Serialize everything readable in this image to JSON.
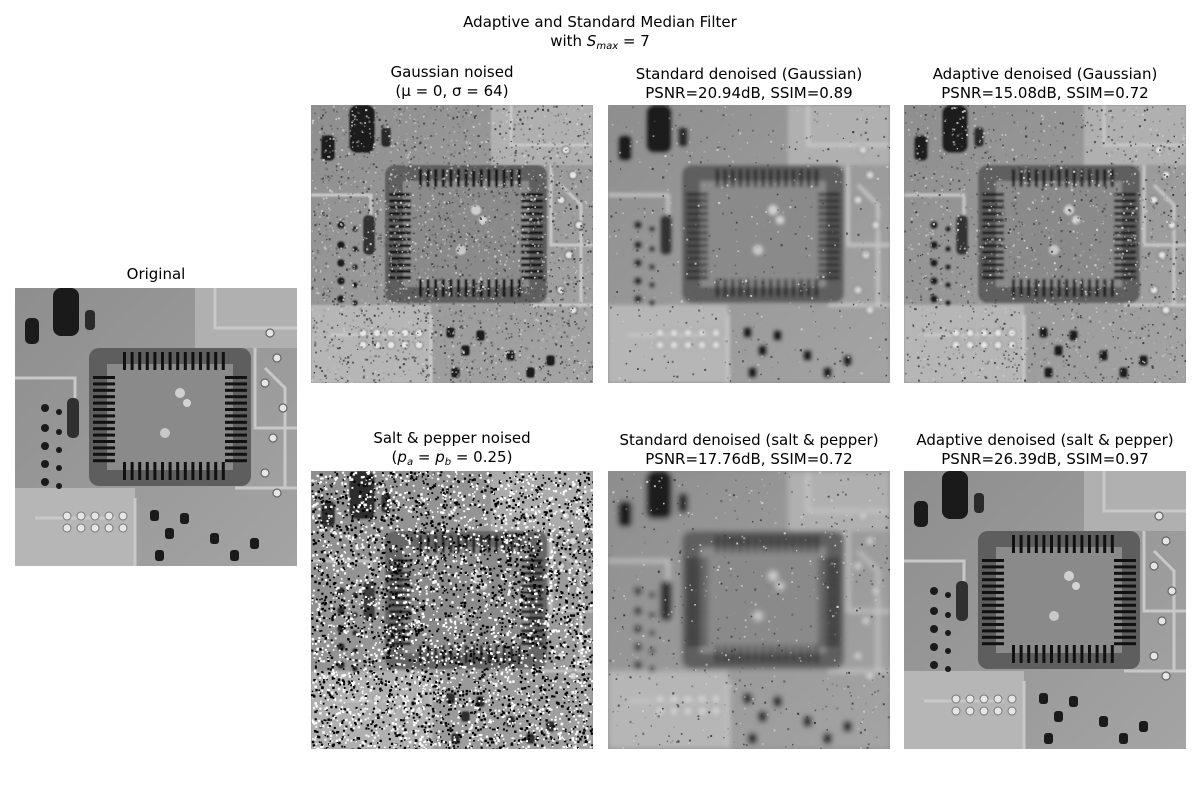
{
  "figure": {
    "title_line1": "Adaptive and Standard Median Filter",
    "title_line2_prefix": "with ",
    "title_var": "S",
    "title_sub": "max",
    "title_suffix": " = 7"
  },
  "panels": {
    "original": {
      "title": "Original",
      "image": "pcb-chip-xray-clean"
    },
    "gaussian_noised": {
      "title_line1": "Gaussian noised",
      "title_line2": "(μ = 0, σ = 64)",
      "image": "pcb-chip-gaussian-noise"
    },
    "standard_gaussian": {
      "title_line1": "Standard denoised (Gaussian)",
      "title_line2": "PSNR=20.94dB, SSIM=0.89",
      "psnr_db": 20.94,
      "ssim": 0.89,
      "image": "pcb-chip-blurred"
    },
    "adaptive_gaussian": {
      "title_line1": "Adaptive denoised (Gaussian)",
      "title_line2": "PSNR=15.08dB, SSIM=0.72",
      "psnr_db": 15.08,
      "ssim": 0.72,
      "image": "pcb-chip-residual-noise"
    },
    "saltpepper_noised": {
      "title_line1": "Salt & pepper noised",
      "title_line2_open": "(",
      "title_line2_pa": "p",
      "title_line2_sub_a": "a",
      "title_line2_eq": " = ",
      "title_line2_pb": "p",
      "title_line2_sub_b": "b",
      "title_line2_value": " = 0.25)",
      "image": "pcb-chip-salt-pepper"
    },
    "standard_saltpepper": {
      "title_line1": "Standard denoised (salt & pepper)",
      "title_line2": "PSNR=17.76dB, SSIM=0.72",
      "psnr_db": 17.76,
      "ssim": 0.72,
      "image": "pcb-chip-blurred-heavy"
    },
    "adaptive_saltpepper": {
      "title_line1": "Adaptive denoised (salt & pepper)",
      "title_line2": "PSNR=26.39dB, SSIM=0.97",
      "psnr_db": 26.39,
      "ssim": 0.97,
      "image": "pcb-chip-restored"
    }
  },
  "colors": {
    "board": "#9a9a9a",
    "chip_body": "#8a8a8a",
    "chip_frame": "#5e5e5e",
    "pins": "#111111",
    "traces": "#c8c8c8",
    "pads_light": "#e6e6e6",
    "pads_dark": "#1a1a1a"
  }
}
